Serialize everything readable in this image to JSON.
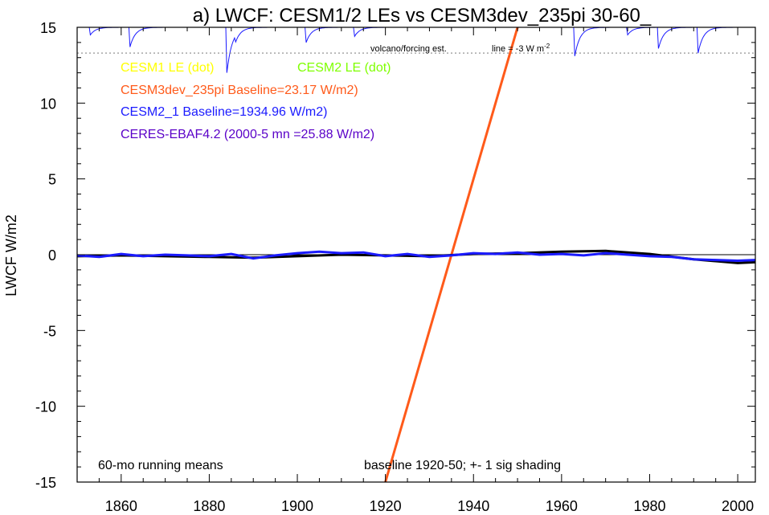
{
  "chart_data": {
    "type": "line",
    "title": "a) LWCF: CESM1/2 LEs vs CESM3dev_235pi 30-60_",
    "ylabel": "LWCF W/m2",
    "xlabel": "",
    "xlim": [
      1850,
      2004
    ],
    "ylim": [
      -15,
      15
    ],
    "x_ticks": [
      1860,
      1880,
      1900,
      1920,
      1940,
      1960,
      1980,
      2000
    ],
    "y_ticks": [
      15,
      10,
      5,
      0,
      -5,
      -10,
      -15
    ],
    "y_tick_labels": [
      "15",
      "10",
      "5",
      "0",
      "-5",
      "-10",
      "-15"
    ],
    "grid": false,
    "legend_position": "top-left",
    "legend": [
      {
        "text": "CESM1 LE (dot)",
        "color": "#ffff00"
      },
      {
        "text": "CESM2 LE (dot)",
        "color": "#7fff00"
      },
      {
        "text": "CESM3dev_235pi Baseline=23.17 W/m2)",
        "color": "#ff5a1a"
      },
      {
        "text": "CESM2_1 Baseline=1934.96 W/m2)",
        "color": "#1a1aff"
      },
      {
        "text": "CERES-EBAF4.2 (2000-5 mn =25.88 W/m2)",
        "color": "#5a00c8"
      }
    ],
    "annotations": {
      "volcano": "volcano/forcing est.",
      "line_label": "line = -3 W m",
      "line_label_exp": "-2",
      "running_means": "60-mo running means",
      "baseline": "baseline 1920-50; +- 1 sig shading"
    },
    "reference_line_y": 13.3,
    "series": [
      {
        "name": "CESM3dev_235pi Baseline=23.17 W/m2)",
        "color": "#ff5a1a",
        "x": [
          1920.0,
          1950.0
        ],
        "y": [
          -15.0,
          15.0
        ]
      },
      {
        "color": "#000000",
        "x": [
          1850,
          1860,
          1870,
          1880,
          1890,
          1900,
          1910,
          1920,
          1930,
          1940,
          1950,
          1960,
          1970,
          1980,
          1990,
          2000,
          2004
        ],
        "y": [
          -0.1,
          -0.05,
          -0.1,
          -0.15,
          -0.2,
          -0.1,
          0.0,
          -0.05,
          -0.1,
          0.05,
          0.1,
          0.2,
          0.25,
          0.05,
          -0.3,
          -0.55,
          -0.5
        ]
      },
      {
        "name": "CESM2_1 Baseline=1934.96 W/m2)",
        "color": "#1a1aff",
        "x": [
          1850,
          1855,
          1860,
          1865,
          1870,
          1875,
          1880,
          1885,
          1890,
          1895,
          1900,
          1905,
          1910,
          1915,
          1920,
          1925,
          1930,
          1935,
          1940,
          1945,
          1950,
          1955,
          1960,
          1965,
          1970,
          1975,
          1980,
          1985,
          1990,
          1995,
          2000,
          2004
        ],
        "y": [
          -0.05,
          -0.15,
          0.05,
          -0.1,
          0.0,
          -0.05,
          -0.1,
          0.05,
          -0.25,
          -0.05,
          0.1,
          0.2,
          0.1,
          0.15,
          -0.1,
          0.05,
          -0.15,
          -0.05,
          0.1,
          0.05,
          0.15,
          0.0,
          0.05,
          -0.05,
          0.1,
          0.0,
          -0.1,
          -0.15,
          -0.3,
          -0.35,
          -0.4,
          -0.35
        ]
      }
    ],
    "volcano_dips": [
      {
        "year": 1853,
        "depth": 0.5
      },
      {
        "year": 1862,
        "depth": 1.3
      },
      {
        "year": 1884,
        "depth": 3.0
      },
      {
        "year": 1886,
        "depth": 0.4
      },
      {
        "year": 1902,
        "depth": 1.0
      },
      {
        "year": 1913,
        "depth": 0.6
      },
      {
        "year": 1963,
        "depth": 1.9
      },
      {
        "year": 1975,
        "depth": 0.5
      },
      {
        "year": 1982,
        "depth": 1.4
      },
      {
        "year": 1991,
        "depth": 1.7
      }
    ]
  }
}
